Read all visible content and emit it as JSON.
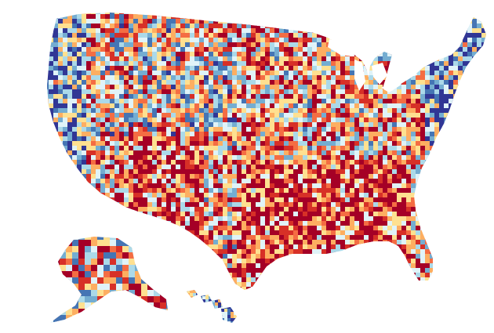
{
  "map": {
    "palette": [
      "#313695",
      "#4575b4",
      "#74add1",
      "#abd9e9",
      "#e0f3f8",
      "#fee090",
      "#fdae61",
      "#f46d43",
      "#d73027",
      "#a50026"
    ],
    "regions": [
      {
        "name": "contiguous-us",
        "level_bias": 0.6
      },
      {
        "name": "alaska",
        "level_bias": 0.55
      },
      {
        "name": "hawaii",
        "level_bias": 0.25
      }
    ]
  }
}
